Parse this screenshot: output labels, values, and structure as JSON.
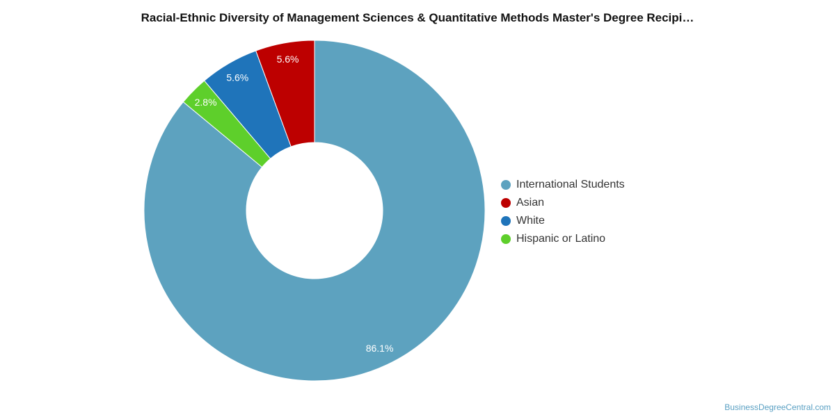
{
  "chart_data": {
    "type": "pie",
    "title": "Racial-Ethnic Diversity of Management Sciences & Quantitative Methods Master's Degree Recipi…",
    "slices": [
      {
        "name": "International Students",
        "value": 86.1,
        "label": "86.1%",
        "color": "#5da2bf"
      },
      {
        "name": "Hispanic or Latino",
        "value": 2.8,
        "label": "2.8%",
        "color": "#5ecf2b"
      },
      {
        "name": "White",
        "value": 5.6,
        "label": "5.6%",
        "color": "#1f74ba"
      },
      {
        "name": "Asian",
        "value": 5.6,
        "label": "5.6%",
        "color": "#bd0000"
      }
    ],
    "legend": [
      "International Students",
      "Asian",
      "White",
      "Hispanic or Latino"
    ],
    "legend_position": "right",
    "donut": true
  },
  "footer": {
    "source": "BusinessDegreeCentral.com"
  }
}
